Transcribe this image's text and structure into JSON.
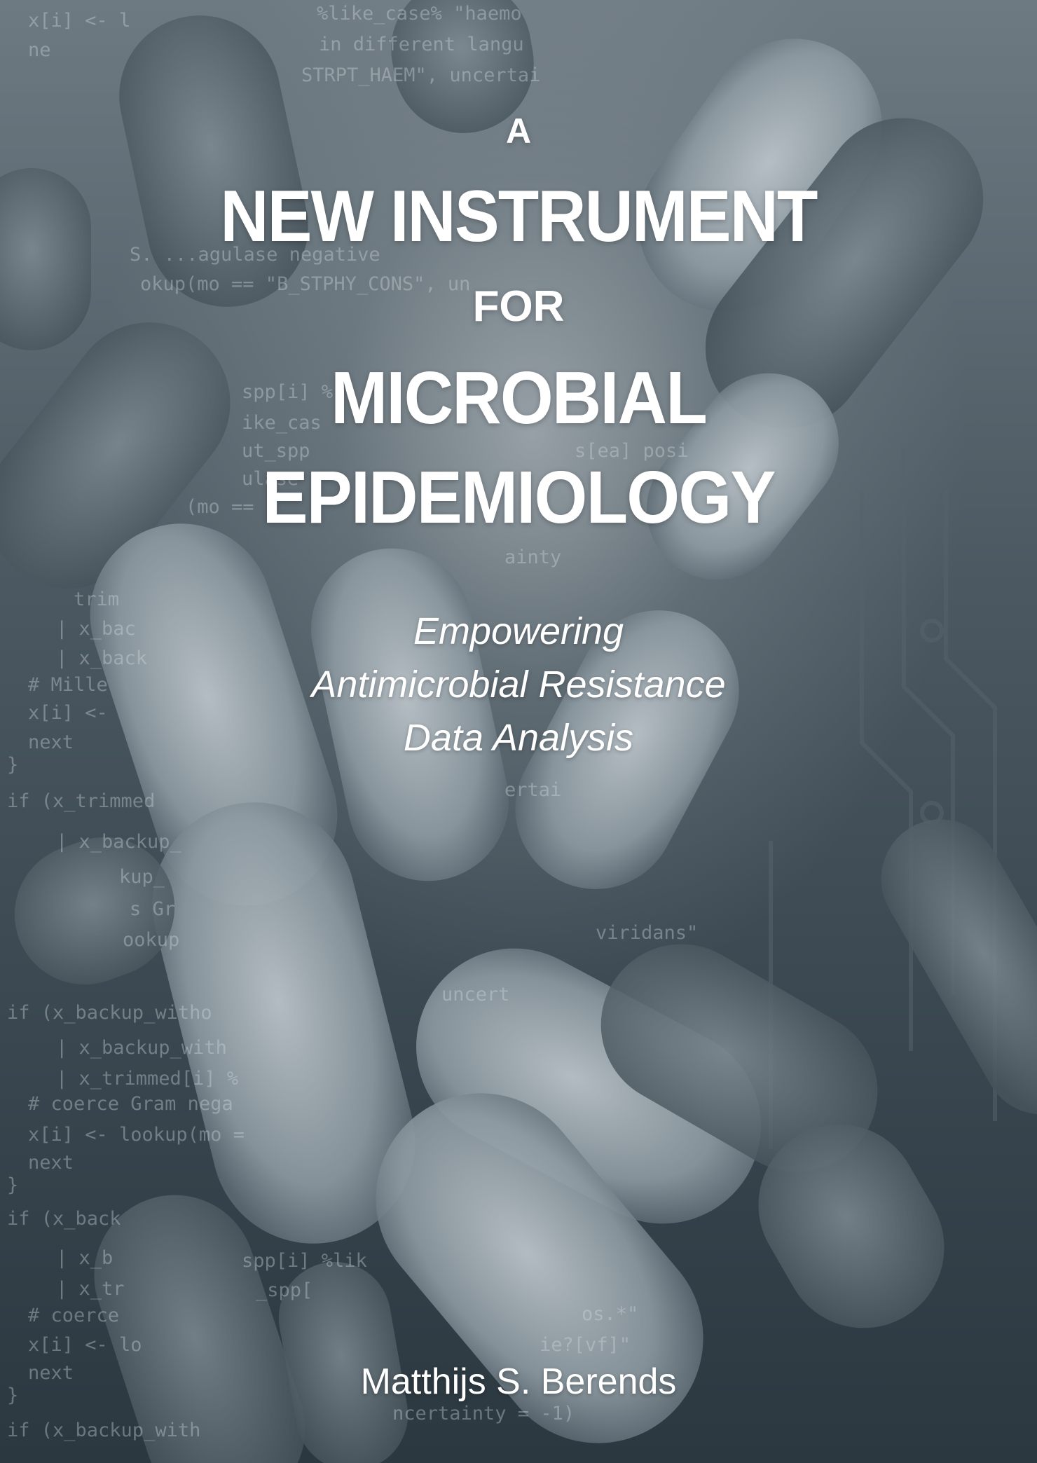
{
  "book": {
    "title_line1": "A",
    "title_line2": "NEW INSTRUMENT",
    "title_line3": "FOR",
    "title_line4": "MICROBIAL",
    "title_line5": "EPIDEMIOLOGY",
    "subtitle_line1": "Empowering",
    "subtitle_line2": "Antimicrobial Resistance",
    "subtitle_line3": "Data Analysis",
    "author": "Matthijs S. Berends"
  },
  "background_code": [
    "x[i] <- l",
    "ne",
    "%like_case% \"haemo",
    "in different langu",
    "STRPT_HAEM\", uncertai",
    "S. ...agulase negative",
    "okup(mo == \"B_STPHY_CONS\", un",
    "spp[i] %",
    "ike_cas",
    "ut_spp",
    "ulase",
    "(mo ==",
    "s[ea] posi",
    "ainty",
    "trim",
    "| x_bac",
    "| x_back",
    "# Mille",
    "x[i] <-",
    "next",
    "}",
    "if (x_trimmed",
    "| x_backup_",
    "kup_",
    "s Gr",
    "ookup",
    "ertai",
    "viridans\"",
    "uncert",
    "if (x_backup_witho",
    "| x_backup_with",
    "| x_trimmed[i] %",
    "# coerce Gram nega",
    "x[i] <- lookup(mo =",
    "next",
    "}",
    "if (x_back",
    "| x_b",
    "| x_tr",
    "# coerce",
    "x[i] <- lo",
    "next",
    "}",
    "if (x_backup_with",
    "spp[i] %lik",
    "_spp[",
    "os.*\"",
    "ie?[vf]\"",
    "ncertainty = -1)"
  ],
  "colors": {
    "background_dark": "#2f3a42",
    "background_light": "#cfd6da",
    "text": "#ffffff"
  }
}
